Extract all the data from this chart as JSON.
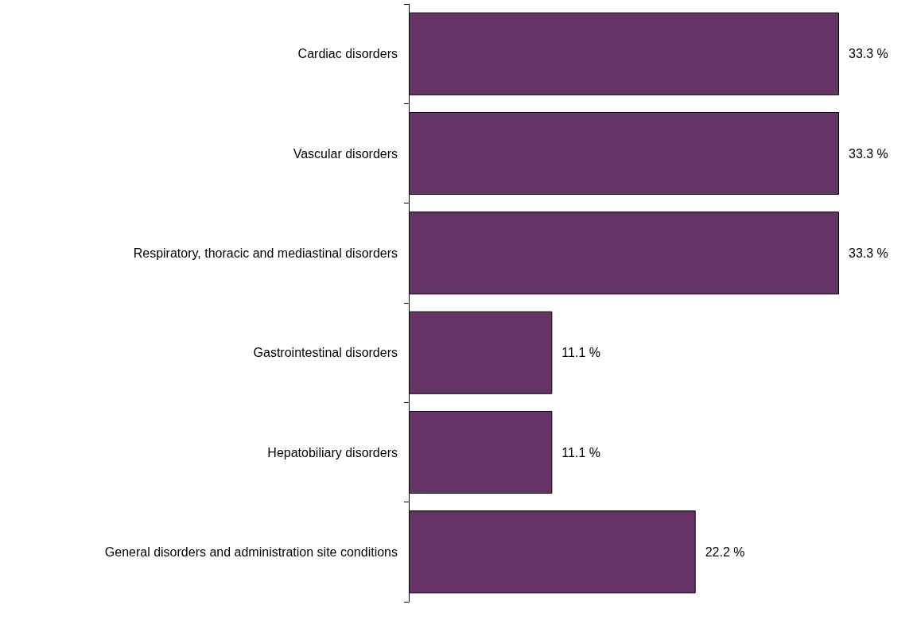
{
  "chart_data": {
    "type": "bar",
    "orientation": "horizontal",
    "categories": [
      "Cardiac disorders",
      "Vascular disorders",
      "Respiratory, thoracic and mediastinal disorders",
      "Gastrointestinal disorders",
      "Hepatobiliary disorders",
      "General disorders and administration site conditions"
    ],
    "values": [
      33.3,
      33.3,
      33.3,
      11.1,
      11.1,
      22.2
    ],
    "value_labels": [
      "33.3 %",
      "33.3 %",
      "33.3 %",
      "11.1 %",
      "11.1 %",
      "22.2 %"
    ],
    "color": "#663366",
    "tick_labels": "y"
  }
}
